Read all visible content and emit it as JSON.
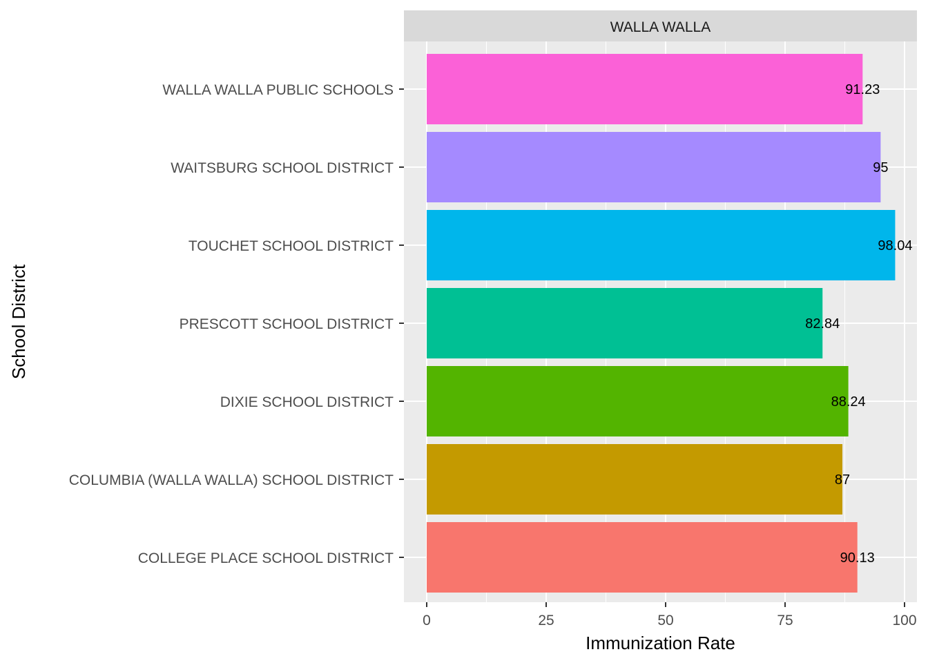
{
  "chart_data": {
    "type": "bar",
    "orientation": "horizontal",
    "facet_label": "WALLA WALLA",
    "xlabel": "Immunization Rate",
    "ylabel": "School District",
    "xlim": [
      0,
      100
    ],
    "x_ticks": [
      0,
      25,
      50,
      75,
      100
    ],
    "x_tick_labels": [
      "0",
      "25",
      "50",
      "75",
      "100"
    ],
    "grid": true,
    "legend": "none",
    "categories": [
      "COLLEGE PLACE SCHOOL DISTRICT",
      "COLUMBIA (WALLA WALLA) SCHOOL DISTRICT",
      "DIXIE SCHOOL DISTRICT",
      "PRESCOTT SCHOOL DISTRICT",
      "TOUCHET SCHOOL DISTRICT",
      "WAITSBURG SCHOOL DISTRICT",
      "WALLA WALLA PUBLIC SCHOOLS"
    ],
    "values": [
      90.13,
      87,
      88.24,
      82.84,
      98.04,
      95,
      91.23
    ],
    "value_labels": [
      "90.13",
      "87",
      "88.24",
      "82.84",
      "98.04",
      "95",
      "91.23"
    ],
    "colors": [
      "#F8766D",
      "#C49A00",
      "#53B400",
      "#00C094",
      "#00B6EB",
      "#A58AFF",
      "#FB61D7"
    ]
  },
  "colors": {
    "panel_background": "#EBEBEB",
    "strip_background": "#D9D9D9",
    "grid_major": "#FFFFFF"
  }
}
